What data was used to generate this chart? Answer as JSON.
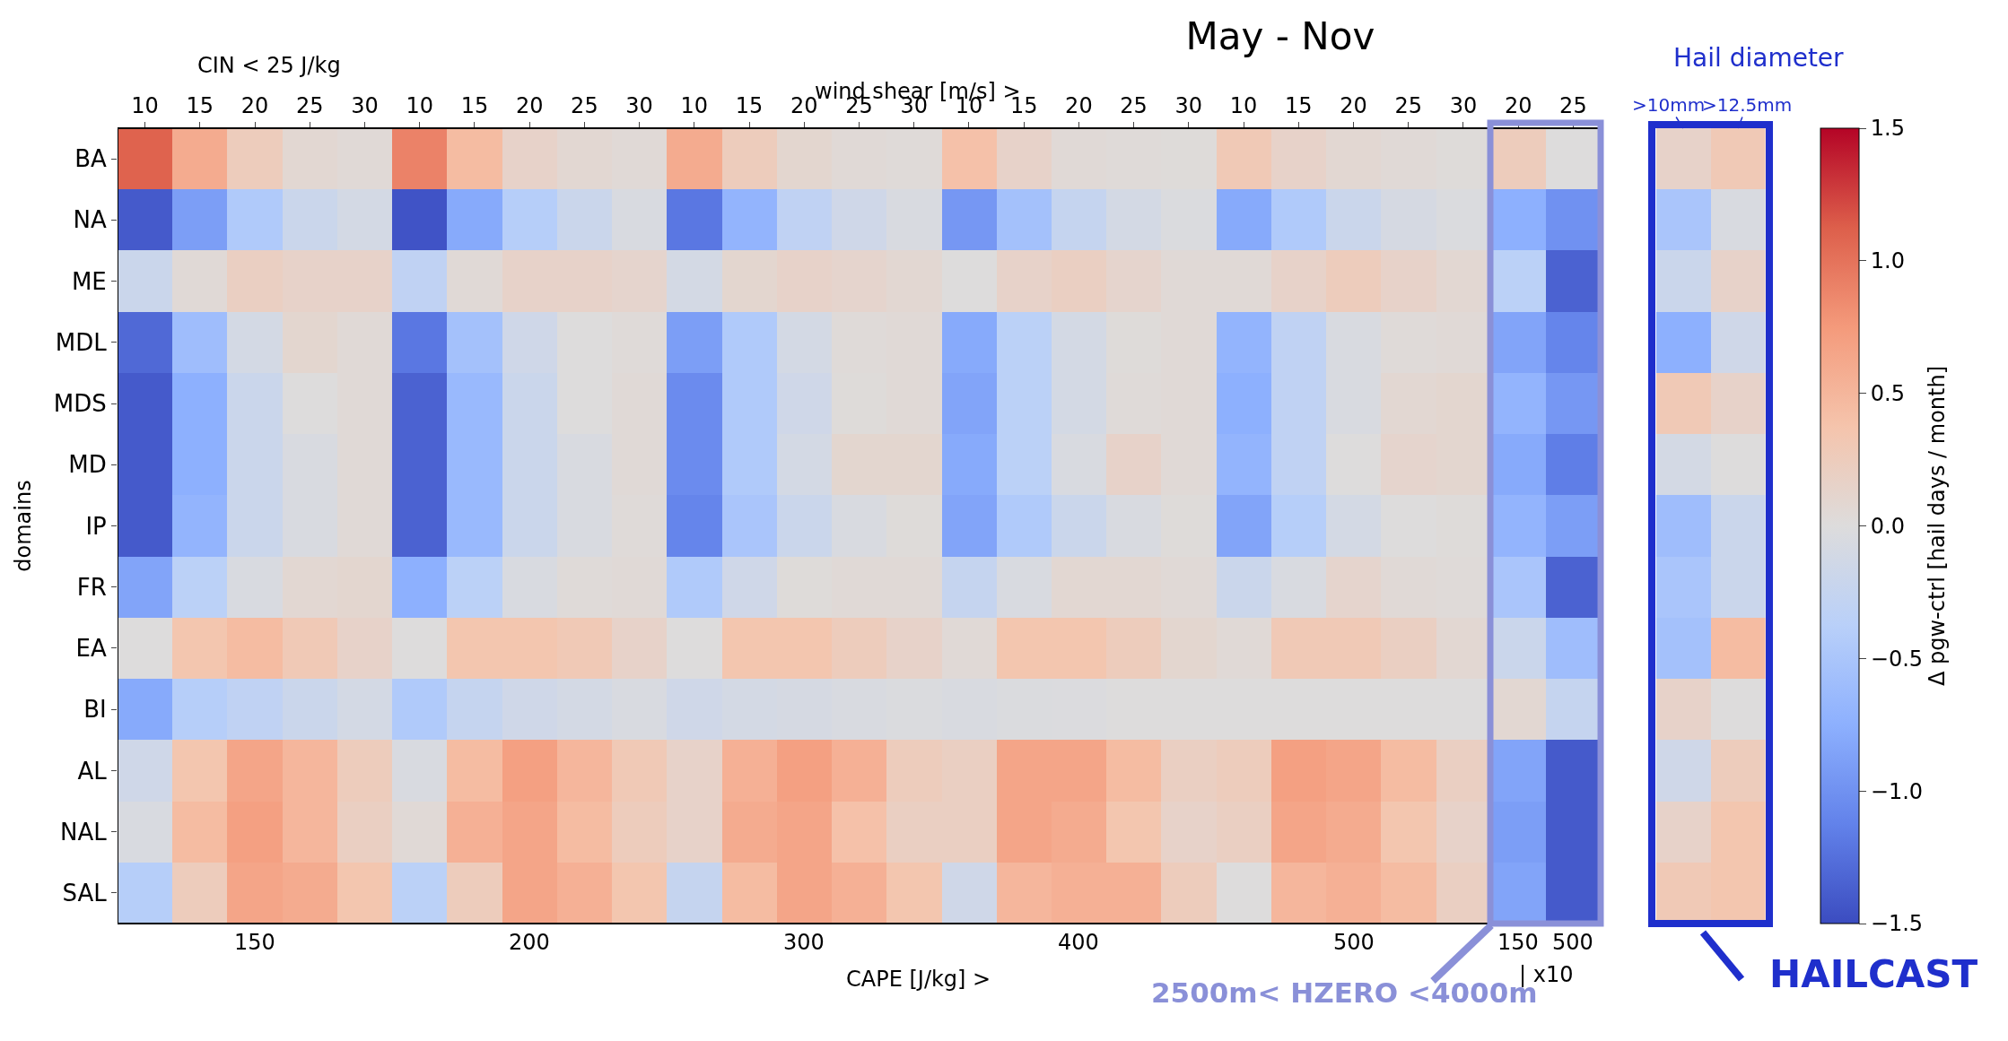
{
  "chart_data": {
    "type": "heatmap",
    "title": "May - Nov",
    "xlabel": "CAPE [J/kg] >",
    "ylabel": "domains",
    "categories": [
      "10",
      "15",
      "20",
      "25",
      "30",
      "10",
      "15",
      "20",
      "25",
      "30",
      "10",
      "15",
      "20",
      "25",
      "30",
      "10",
      "15",
      "20",
      "25",
      "30",
      "10",
      "15",
      "20",
      "25",
      "30",
      "20",
      "25",
      null,
      ">10mm",
      ">12.5mm"
    ],
    "y_categories": [
      "BA",
      "NA",
      "ME",
      "MDL",
      "MDS",
      "MD",
      "IP",
      "FR",
      "EA",
      "BI",
      "AL",
      "NAL",
      "SAL"
    ],
    "cells": [
      [
        1.1,
        0.6,
        0.25,
        0.08,
        0.05,
        0.9,
        0.45,
        0.15,
        0.08,
        0.05,
        0.6,
        0.25,
        0.1,
        0.05,
        0.03,
        0.4,
        0.15,
        0.05,
        0.03,
        0.02,
        0.3,
        0.15,
        0.08,
        0.05,
        0.02,
        0.25,
        0.0,
        null,
        0.15,
        0.3
      ],
      [
        -1.4,
        -0.9,
        -0.45,
        -0.2,
        -0.1,
        -1.45,
        -0.8,
        -0.4,
        -0.2,
        -0.05,
        -1.2,
        -0.7,
        -0.3,
        -0.15,
        -0.05,
        -0.95,
        -0.55,
        -0.25,
        -0.1,
        -0.03,
        -0.8,
        -0.45,
        -0.2,
        -0.08,
        -0.03,
        -0.75,
        -1.0,
        null,
        -0.5,
        -0.05
      ],
      [
        -0.2,
        0.05,
        0.2,
        0.15,
        0.15,
        -0.3,
        0.05,
        0.15,
        0.15,
        0.12,
        -0.1,
        0.1,
        0.15,
        0.12,
        0.08,
        0.0,
        0.15,
        0.2,
        0.12,
        0.05,
        0.05,
        0.15,
        0.25,
        0.15,
        0.08,
        -0.35,
        -1.35,
        null,
        -0.2,
        0.15
      ],
      [
        -1.3,
        -0.6,
        -0.1,
        0.1,
        0.05,
        -1.2,
        -0.55,
        -0.15,
        0.0,
        0.03,
        -0.9,
        -0.45,
        -0.1,
        0.03,
        0.05,
        -0.8,
        -0.35,
        -0.1,
        0.02,
        0.05,
        -0.7,
        -0.3,
        -0.05,
        0.03,
        0.05,
        -0.85,
        -1.1,
        null,
        -0.75,
        -0.15
      ],
      [
        -1.4,
        -0.75,
        -0.2,
        0.0,
        0.05,
        -1.35,
        -0.65,
        -0.2,
        0.0,
        0.05,
        -1.05,
        -0.45,
        -0.15,
        0.02,
        0.05,
        -0.85,
        -0.35,
        -0.1,
        0.03,
        0.05,
        -0.75,
        -0.3,
        -0.05,
        0.08,
        0.1,
        -0.7,
        -0.95,
        null,
        0.3,
        0.15
      ],
      [
        -1.4,
        -0.75,
        -0.2,
        -0.05,
        0.05,
        -1.35,
        -0.65,
        -0.2,
        -0.05,
        0.05,
        -1.05,
        -0.45,
        -0.1,
        0.1,
        0.1,
        -0.8,
        -0.35,
        -0.05,
        0.15,
        0.05,
        -0.7,
        -0.3,
        0.0,
        0.12,
        0.1,
        -0.8,
        -1.15,
        null,
        -0.1,
        0.0
      ],
      [
        -1.4,
        -0.7,
        -0.2,
        -0.05,
        0.05,
        -1.35,
        -0.65,
        -0.2,
        -0.05,
        0.03,
        -1.1,
        -0.5,
        -0.2,
        -0.05,
        0.02,
        -0.85,
        -0.45,
        -0.2,
        -0.05,
        0.02,
        -0.85,
        -0.4,
        -0.1,
        0.0,
        0.02,
        -0.7,
        -0.9,
        null,
        -0.6,
        -0.2
      ],
      [
        -0.85,
        -0.35,
        -0.05,
        0.08,
        0.1,
        -0.75,
        -0.35,
        -0.05,
        0.03,
        0.05,
        -0.45,
        -0.15,
        0.02,
        0.05,
        0.05,
        -0.25,
        -0.05,
        0.08,
        0.08,
        0.05,
        -0.2,
        -0.05,
        0.12,
        0.05,
        0.03,
        -0.5,
        -1.35,
        null,
        -0.5,
        -0.2
      ],
      [
        0.0,
        0.35,
        0.45,
        0.3,
        0.15,
        0.0,
        0.35,
        0.35,
        0.3,
        0.15,
        0.0,
        0.35,
        0.35,
        0.25,
        0.15,
        0.05,
        0.35,
        0.35,
        0.25,
        0.1,
        0.05,
        0.3,
        0.3,
        0.2,
        0.08,
        -0.2,
        -0.6,
        null,
        -0.55,
        0.45
      ],
      [
        -0.8,
        -0.4,
        -0.3,
        -0.2,
        -0.1,
        -0.45,
        -0.25,
        -0.15,
        -0.1,
        -0.05,
        -0.15,
        -0.1,
        -0.08,
        -0.05,
        -0.03,
        -0.05,
        -0.03,
        -0.02,
        0.0,
        0.0,
        0.0,
        0.0,
        0.0,
        0.0,
        0.0,
        0.08,
        -0.25,
        null,
        0.15,
        0.0
      ],
      [
        -0.15,
        0.35,
        0.65,
        0.5,
        0.25,
        -0.05,
        0.45,
        0.7,
        0.5,
        0.3,
        0.15,
        0.55,
        0.7,
        0.55,
        0.25,
        0.2,
        0.65,
        0.65,
        0.45,
        0.2,
        0.25,
        0.7,
        0.65,
        0.45,
        0.2,
        -0.85,
        -1.4,
        null,
        -0.15,
        0.25
      ],
      [
        -0.05,
        0.45,
        0.7,
        0.5,
        0.2,
        0.05,
        0.55,
        0.65,
        0.45,
        0.25,
        0.15,
        0.6,
        0.65,
        0.4,
        0.2,
        0.2,
        0.65,
        0.6,
        0.35,
        0.15,
        0.2,
        0.65,
        0.6,
        0.35,
        0.15,
        -0.9,
        -1.4,
        null,
        0.15,
        0.35
      ],
      [
        -0.4,
        0.25,
        0.65,
        0.6,
        0.35,
        -0.35,
        0.25,
        0.65,
        0.55,
        0.35,
        -0.25,
        0.45,
        0.65,
        0.55,
        0.35,
        -0.15,
        0.5,
        0.55,
        0.55,
        0.25,
        0.0,
        0.5,
        0.55,
        0.45,
        0.2,
        -0.85,
        -1.4,
        null,
        0.3,
        0.35
      ]
    ],
    "clim": [
      -1.5,
      1.5
    ],
    "cticks": [
      {
        "value": -1.5,
        "label": "−1.5"
      },
      {
        "value": -1,
        "label": "−1.0"
      },
      {
        "value": -0.5,
        "label": "−0.5"
      },
      {
        "value": 0,
        "label": "0.0"
      },
      {
        "value": 0.5,
        "label": "0.5"
      },
      {
        "value": 1,
        "label": "1.0"
      },
      {
        "value": 1.5,
        "label": "1.5"
      }
    ],
    "clabel": "Δ pgw-ctrl [hail days / month]",
    "annotations": [
      "CIN < 25 J/kg",
      "wind shear [m/s] >",
      "150",
      "200",
      "300",
      "400",
      "500",
      "150",
      "500",
      "| x10",
      "2500m< HZERO <4000m",
      "Hail diameter",
      "HAILCAST"
    ]
  }
}
